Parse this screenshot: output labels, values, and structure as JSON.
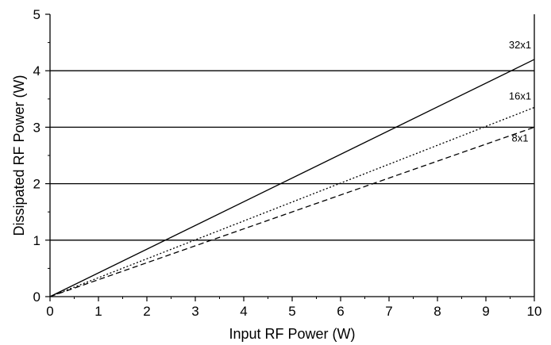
{
  "chart_data": {
    "type": "line",
    "title": "",
    "xlabel": "Input RF Power (W)",
    "ylabel": "Dissipated RF Power (W)",
    "xlim": [
      0,
      10
    ],
    "ylim": [
      0,
      5
    ],
    "x_ticks": [
      "0",
      "1",
      "2",
      "3",
      "4",
      "5",
      "6",
      "7",
      "8",
      "9",
      "10"
    ],
    "y_ticks": [
      "0",
      "1",
      "2",
      "3",
      "4",
      "5"
    ],
    "grid": "horizontal at y = 1, 2, 3, 4",
    "series": [
      {
        "name": "32x1",
        "line_style": "solid",
        "x": [
          0,
          10
        ],
        "y": [
          0,
          4.2
        ]
      },
      {
        "name": "16x1",
        "line_style": "dotted",
        "x": [
          0,
          10
        ],
        "y": [
          0,
          3.35
        ]
      },
      {
        "name": "8x1",
        "line_style": "dashed",
        "x": [
          0,
          10
        ],
        "y": [
          0,
          3.0
        ]
      }
    ]
  }
}
